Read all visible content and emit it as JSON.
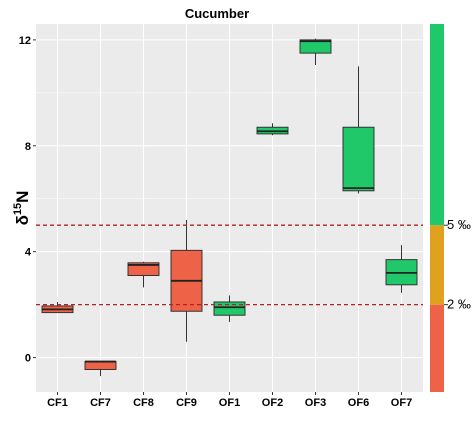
{
  "chart_data": {
    "type": "box",
    "title": "Cucumber",
    "xlabel": "",
    "ylabel": "δ15N",
    "ylabel_main": "δ",
    "ylabel_sup": "15",
    "ylabel_tail": "N",
    "ylim": [
      -1.3,
      12.6
    ],
    "yticks": [
      0,
      4,
      8,
      12
    ],
    "ytick_labels": [
      "0",
      "4",
      "8",
      "12"
    ],
    "grid": true,
    "categories": [
      "CF1",
      "CF7",
      "CF8",
      "CF9",
      "OF1",
      "OF2",
      "OF3",
      "OF6",
      "OF7"
    ],
    "boxes": [
      {
        "category": "CF1",
        "min": 1.7,
        "q1": 1.7,
        "median": 1.82,
        "q3": 1.95,
        "max": 2.1,
        "color": "#EE6347"
      },
      {
        "category": "CF7",
        "min": -0.7,
        "q1": -0.45,
        "median": -0.15,
        "q3": -0.15,
        "max": -0.15,
        "color": "#EE6347"
      },
      {
        "category": "CF8",
        "min": 2.65,
        "q1": 3.1,
        "median": 3.5,
        "q3": 3.58,
        "max": 3.62,
        "color": "#EE6347"
      },
      {
        "category": "CF9",
        "min": 0.6,
        "q1": 1.75,
        "median": 2.9,
        "q3": 4.05,
        "max": 5.2,
        "color": "#EE6347"
      },
      {
        "category": "OF1",
        "min": 1.35,
        "q1": 1.6,
        "median": 1.9,
        "q3": 2.1,
        "max": 2.35,
        "color": "#20C86A"
      },
      {
        "category": "OF2",
        "min": 8.4,
        "q1": 8.45,
        "median": 8.55,
        "q3": 8.7,
        "max": 8.85,
        "color": "#20C86A"
      },
      {
        "category": "OF3",
        "min": 11.05,
        "q1": 11.5,
        "median": 11.95,
        "q3": 12.0,
        "max": 12.05,
        "color": "#20C86A"
      },
      {
        "category": "OF6",
        "min": 6.2,
        "q1": 6.3,
        "median": 6.4,
        "q3": 8.7,
        "max": 11.0,
        "color": "#20C86A"
      },
      {
        "category": "OF7",
        "min": 2.45,
        "q1": 2.75,
        "median": 3.2,
        "q3": 3.7,
        "max": 4.25,
        "color": "#20C86A"
      }
    ],
    "reference_lines": [
      {
        "y": 5,
        "color": "#B22222",
        "style": "dashed"
      },
      {
        "y": 2,
        "color": "#B22222",
        "style": "dashed"
      }
    ],
    "legend": {
      "placement": "right",
      "segments": [
        {
          "from": -1.3,
          "to": 2,
          "color": "#EE6347"
        },
        {
          "from": 2,
          "to": 5,
          "color": "#E0A21E"
        },
        {
          "from": 5,
          "to": 12.6,
          "color": "#20C86A"
        }
      ],
      "labels": [
        {
          "y": 2,
          "text": "2 ‰"
        },
        {
          "y": 5,
          "text": "5 ‰"
        }
      ]
    },
    "colors": {
      "panel": "#EBEBEB",
      "grid": "#FFFFFF",
      "conventional": "#EE6347",
      "organic": "#20C86A",
      "intermediate": "#E0A21E",
      "reference": "#B22222"
    }
  }
}
